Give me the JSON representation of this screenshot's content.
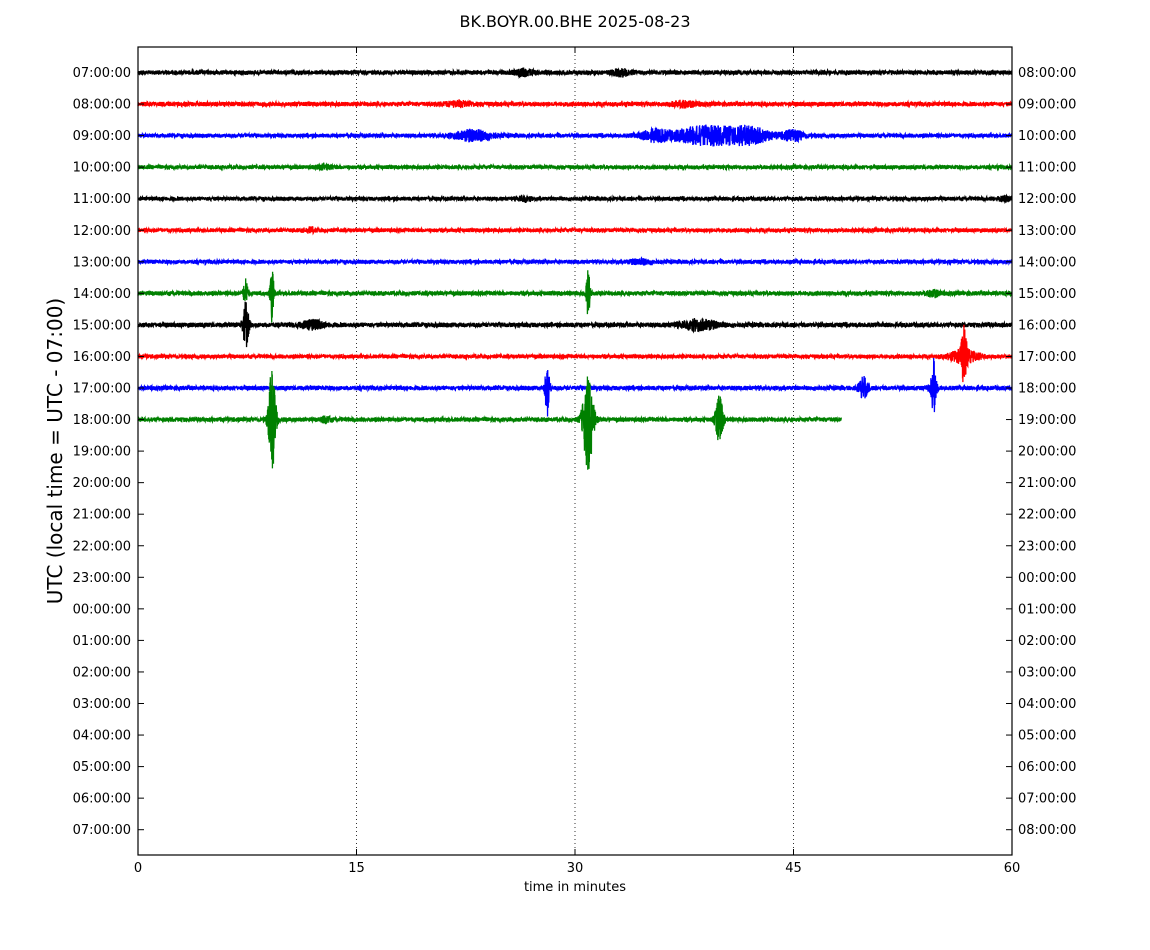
{
  "chart_data": {
    "type": "line",
    "title": "BK.BOYR.00.BHE 2025-08-23",
    "xlabel": "time in minutes",
    "ylabel": "UTC (local time = UTC - 07:00)",
    "xlim": [
      0,
      60
    ],
    "x_ticks": [
      0,
      15,
      30,
      45,
      60
    ],
    "grid": "vertical dotted at 15, 30, 45",
    "left_labels": [
      "07:00:00",
      "08:00:00",
      "09:00:00",
      "10:00:00",
      "11:00:00",
      "12:00:00",
      "13:00:00",
      "14:00:00",
      "15:00:00",
      "16:00:00",
      "17:00:00",
      "18:00:00",
      "19:00:00",
      "20:00:00",
      "21:00:00",
      "22:00:00",
      "23:00:00",
      "00:00:00",
      "01:00:00",
      "02:00:00",
      "03:00:00",
      "04:00:00",
      "05:00:00",
      "06:00:00",
      "07:00:00"
    ],
    "right_labels": [
      "08:00:00",
      "09:00:00",
      "10:00:00",
      "11:00:00",
      "12:00:00",
      "13:00:00",
      "14:00:00",
      "15:00:00",
      "16:00:00",
      "17:00:00",
      "18:00:00",
      "19:00:00",
      "20:00:00",
      "21:00:00",
      "22:00:00",
      "23:00:00",
      "00:00:00",
      "01:00:00",
      "02:00:00",
      "03:00:00",
      "04:00:00",
      "05:00:00",
      "06:00:00",
      "07:00:00",
      "08:00:00"
    ],
    "colors": [
      "#000000",
      "#ff0000",
      "#0000ff",
      "#008000"
    ],
    "traces": [
      {
        "row": 0,
        "color": "#000000",
        "end_min": 60,
        "noise": 2.2,
        "bursts": [
          {
            "t": 26.5,
            "amp": 3,
            "width": 0.6
          },
          {
            "t": 33.2,
            "amp": 3,
            "width": 0.6
          }
        ]
      },
      {
        "row": 1,
        "color": "#ff0000",
        "end_min": 60,
        "noise": 2.2,
        "bursts": [
          {
            "t": 22,
            "amp": 2,
            "width": 1.0
          },
          {
            "t": 37.5,
            "amp": 2.5,
            "width": 0.8
          }
        ]
      },
      {
        "row": 2,
        "color": "#0000ff",
        "end_min": 60,
        "noise": 2.0,
        "bursts": [
          {
            "t": 23,
            "amp": 5,
            "width": 1.3
          },
          {
            "t": 35.5,
            "amp": 5,
            "width": 1.0
          },
          {
            "t": 39,
            "amp": 9,
            "width": 2.2
          },
          {
            "t": 42,
            "amp": 7,
            "width": 1.5
          },
          {
            "t": 45,
            "amp": 5,
            "width": 0.7
          }
        ]
      },
      {
        "row": 3,
        "color": "#008000",
        "end_min": 60,
        "noise": 2.0,
        "bursts": [
          {
            "t": 12.8,
            "amp": 2,
            "width": 0.5
          }
        ]
      },
      {
        "row": 4,
        "color": "#000000",
        "end_min": 60,
        "noise": 2.0,
        "bursts": [
          {
            "t": 26.5,
            "amp": 2.5,
            "width": 0.4
          },
          {
            "t": 59.5,
            "amp": 2,
            "width": 0.5
          }
        ]
      },
      {
        "row": 5,
        "color": "#ff0000",
        "end_min": 60,
        "noise": 2.0,
        "bursts": [
          {
            "t": 11.8,
            "amp": 2,
            "width": 0.4
          }
        ]
      },
      {
        "row": 6,
        "color": "#0000ff",
        "end_min": 60,
        "noise": 2.0,
        "bursts": [
          {
            "t": 34.5,
            "amp": 2,
            "width": 0.8
          }
        ]
      },
      {
        "row": 7,
        "color": "#008000",
        "end_min": 60,
        "noise": 2.2,
        "bursts": [
          {
            "t": 9.2,
            "amp": 28,
            "width": 0.12
          },
          {
            "t": 30.9,
            "amp": 25,
            "width": 0.12
          },
          {
            "t": 7.4,
            "amp": 14,
            "width": 0.15
          },
          {
            "t": 54.6,
            "amp": 3,
            "width": 0.4
          }
        ]
      },
      {
        "row": 8,
        "color": "#000000",
        "end_min": 60,
        "noise": 2.3,
        "bursts": [
          {
            "t": 7.4,
            "amp": 22,
            "width": 0.2
          },
          {
            "t": 12,
            "amp": 4,
            "width": 0.8
          },
          {
            "t": 38.5,
            "amp": 5,
            "width": 1.2
          }
        ]
      },
      {
        "row": 9,
        "color": "#ff0000",
        "end_min": 60,
        "noise": 2.0,
        "bursts": [
          {
            "t": 56.7,
            "amp": 24,
            "width": 0.18
          },
          {
            "t": 56.7,
            "amp": 6,
            "width": 1.0
          }
        ]
      },
      {
        "row": 10,
        "color": "#0000ff",
        "end_min": 60,
        "noise": 2.2,
        "bursts": [
          {
            "t": 28.1,
            "amp": 28,
            "width": 0.15
          },
          {
            "t": 49.8,
            "amp": 10,
            "width": 0.3
          },
          {
            "t": 54.6,
            "amp": 30,
            "width": 0.18
          }
        ]
      },
      {
        "row": 11,
        "color": "#008000",
        "end_min": 48.3,
        "noise": 2.2,
        "bursts": [
          {
            "t": 9.2,
            "amp": 50,
            "width": 0.25
          },
          {
            "t": 30.9,
            "amp": 50,
            "width": 0.35
          },
          {
            "t": 39.9,
            "amp": 24,
            "width": 0.25
          },
          {
            "t": 12.9,
            "amp": 3,
            "width": 0.3
          }
        ]
      }
    ]
  }
}
